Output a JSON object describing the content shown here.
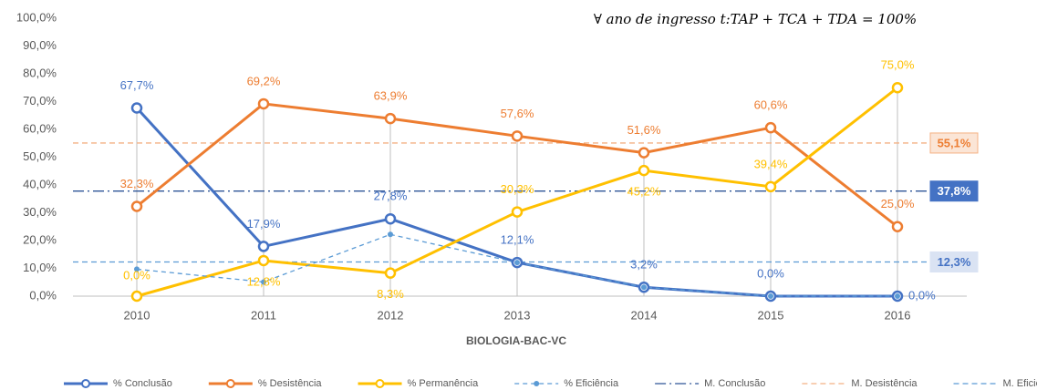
{
  "chart_data": {
    "type": "line",
    "annotation": "∀ ano de ingresso t:TAP + TCA + TDA = 100%",
    "x_label": "BIOLOGIA-BAC-VC",
    "categories": [
      "2010",
      "2011",
      "2012",
      "2013",
      "2014",
      "2015",
      "2016"
    ],
    "ylim": [
      0,
      100
    ],
    "yticks": [
      {
        "value": 0,
        "label": "0,0%"
      },
      {
        "value": 10,
        "label": "10,0%"
      },
      {
        "value": 20,
        "label": "20,0%"
      },
      {
        "value": 30,
        "label": "30,0%"
      },
      {
        "value": 40,
        "label": "40,0%"
      },
      {
        "value": 50,
        "label": "50,0%"
      },
      {
        "value": 60,
        "label": "60,0%"
      },
      {
        "value": 70,
        "label": "70,0%"
      },
      {
        "value": 80,
        "label": "80,0%"
      },
      {
        "value": 90,
        "label": "90,0%"
      },
      {
        "value": 100,
        "label": "100,0%"
      }
    ],
    "legend": "bottom",
    "series": [
      {
        "name": "% Conclusão",
        "color": "#4472c4",
        "marker": "open",
        "values": [
          67.7,
          17.9,
          27.8,
          12.1,
          3.2,
          0.0,
          0.0
        ],
        "value_labels": [
          "67,7%",
          "17,9%",
          "27,8%",
          "12,1%",
          "3,2%",
          "0,0%",
          "0,0%"
        ]
      },
      {
        "name": "% Desistência",
        "color": "#ed7d31",
        "marker": "open",
        "values": [
          32.3,
          69.2,
          63.9,
          57.6,
          51.6,
          60.6,
          25.0
        ],
        "value_labels": [
          "32,3%",
          "69,2%",
          "63,9%",
          "57,6%",
          "51,6%",
          "60,6%",
          "25,0%"
        ]
      },
      {
        "name": "% Permanência",
        "color": "#ffc000",
        "marker": "open",
        "values": [
          0.0,
          12.8,
          8.3,
          30.3,
          45.2,
          39.4,
          75.0
        ],
        "value_labels": [
          "0,0%",
          "12,8%",
          "8,3%",
          "30,3%",
          "45,2%",
          "39,4%",
          "75,0%"
        ]
      },
      {
        "name": "% Eficiência",
        "color": "#5b9bd5",
        "marker": "dot",
        "dash": "5,4",
        "values": [
          9.7,
          5.1,
          22.2,
          12.1,
          3.2,
          0.0,
          0.0
        ]
      }
    ],
    "means": [
      {
        "name": "M. Conclusão",
        "color": "#2f5597",
        "dash": "12,4,2,4",
        "value": 37.8,
        "value_label": "37,8%",
        "box_fill": "#4472c4",
        "box_text": "#ffffff"
      },
      {
        "name": "M. Desistência",
        "color": "#f4b183",
        "dash": "6,4",
        "value": 55.1,
        "value_label": "55,1%",
        "box_fill": "#fbe5d6",
        "box_text": "#ed7d31"
      },
      {
        "name": "M. Eficiência",
        "color": "#5b9bd5",
        "dash": "6,4",
        "value": 12.3,
        "value_label": "12,3%",
        "box_fill": "#dae3f3",
        "box_text": "#4472c4"
      }
    ]
  }
}
